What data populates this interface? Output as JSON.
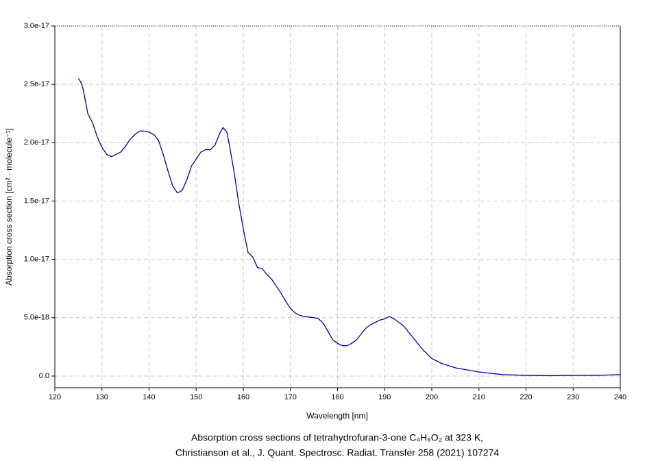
{
  "chart_data": {
    "type": "line",
    "title": [
      "Absorption cross sections of tetrahydrofuran-3-one C₄H₆O₂ at 323 K,",
      "Christianson et al., J. Quant. Spectrosc. Radiat. Transfer 258 (2021) 107274"
    ],
    "x_label": "Wavelength [nm]",
    "y_label": "Absorption cross section [cm² · molecule⁻¹]",
    "xlim": [
      120,
      240
    ],
    "xticks": [
      120,
      130,
      140,
      150,
      160,
      170,
      180,
      190,
      200,
      210,
      220,
      230,
      240
    ],
    "ylim": [
      -1e-18,
      3e-17
    ],
    "yticks": [
      {
        "value": 0,
        "label": "0.0"
      },
      {
        "value": 5e-18,
        "label": "5.0e-18"
      },
      {
        "value": 1e-17,
        "label": "1.0e-17"
      },
      {
        "value": 1.5e-17,
        "label": "1.5e-17"
      },
      {
        "value": 2e-17,
        "label": "2.0e-17"
      },
      {
        "value": 2.5e-17,
        "label": "2.5e-17"
      },
      {
        "value": 3e-17,
        "label": "3.0e-17"
      }
    ],
    "grid": true,
    "x": [
      125,
      125.5,
      126,
      127,
      128,
      129,
      130,
      131,
      132,
      133,
      134,
      135,
      136,
      137,
      138,
      139,
      140,
      141,
      142,
      143,
      144,
      145,
      146,
      147,
      148,
      149,
      150,
      151,
      152,
      153,
      154,
      155,
      155.7,
      156.5,
      157,
      158,
      159,
      160,
      161,
      162,
      163,
      164,
      165,
      166,
      167,
      168,
      169,
      170,
      171,
      172,
      173,
      174,
      175,
      176,
      177,
      178,
      179,
      180,
      181,
      182,
      183,
      184,
      185,
      186,
      187,
      188,
      189,
      190,
      191,
      192,
      193,
      194,
      195,
      196,
      197,
      198,
      199,
      200,
      202,
      205,
      210,
      215,
      220,
      225,
      230,
      235,
      240
    ],
    "series": [
      {
        "color": "#0000aa",
        "values": [
          2.55e-17,
          2.52e-17,
          2.46e-17,
          2.25e-17,
          2.17e-17,
          2.05e-17,
          1.96e-17,
          1.9e-17,
          1.88e-17,
          1.9e-17,
          1.92e-17,
          1.97e-17,
          2.03e-17,
          2.07e-17,
          2.1e-17,
          2.1e-17,
          2.09e-17,
          2.07e-17,
          2.02e-17,
          1.9e-17,
          1.76e-17,
          1.63e-17,
          1.57e-17,
          1.59e-17,
          1.68e-17,
          1.8e-17,
          1.86e-17,
          1.92e-17,
          1.94e-17,
          1.94e-17,
          1.98e-17,
          2.08e-17,
          2.13e-17,
          2.09e-17,
          1.99e-17,
          1.76e-17,
          1.49e-17,
          1.26e-17,
          1.06e-17,
          1.02e-17,
          9.3e-18,
          9.2e-18,
          8.7e-18,
          8.3e-18,
          7.7e-18,
          7.1e-18,
          6.4e-18,
          5.8e-18,
          5.4e-18,
          5.2e-18,
          5.1e-18,
          5.05e-18,
          5e-18,
          4.9e-18,
          4.5e-18,
          3.8e-18,
          3.1e-18,
          2.8e-18,
          2.6e-18,
          2.6e-18,
          2.8e-18,
          3.1e-18,
          3.6e-18,
          4.1e-18,
          4.4e-18,
          4.6e-18,
          4.8e-18,
          4.9e-18,
          5.1e-18,
          4.9e-18,
          4.6e-18,
          4.3e-18,
          3.8e-18,
          3.3e-18,
          2.8e-18,
          2.3e-18,
          1.9e-18,
          1.5e-18,
          1.1e-18,
          7e-19,
          3.5e-19,
          1.2e-19,
          6e-20,
          3e-20,
          6e-20,
          6e-20,
          1.2e-19
        ]
      }
    ]
  }
}
